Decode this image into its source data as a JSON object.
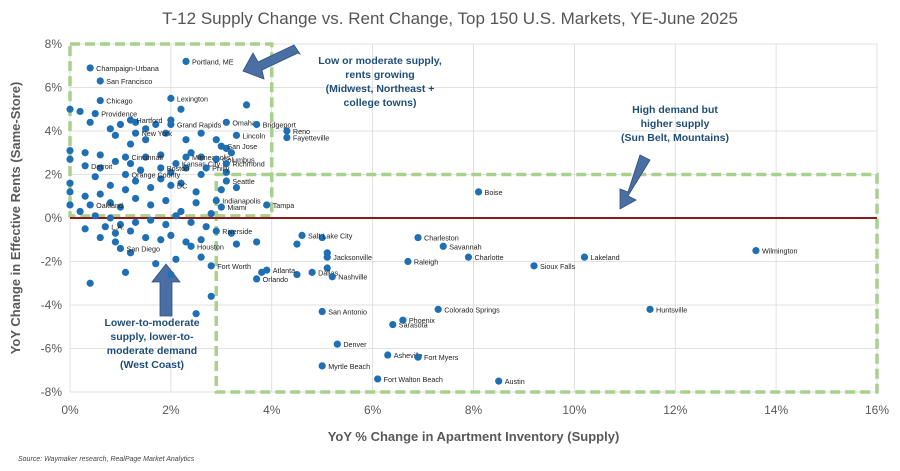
{
  "chart_data": {
    "type": "scatter",
    "title": "T-12 Supply Change vs. Rent Change, Top 150 U.S. Markets, YE-June 2025",
    "xlabel": "YoY % Change in Apartment Inventory (Supply)",
    "ylabel": "YoY Change in Effective Rents (Same-Store)",
    "xlim": [
      0,
      16
    ],
    "ylim": [
      -8,
      8
    ],
    "x_ticks": [
      "0%",
      "2%",
      "4%",
      "6%",
      "8%",
      "10%",
      "12%",
      "14%",
      "16%"
    ],
    "y_ticks": [
      "8%",
      "6%",
      "4%",
      "2%",
      "0%",
      "-2%",
      "-4%",
      "-6%",
      "-8%"
    ],
    "grid": true,
    "point_color": "#1f6fb4",
    "labeled_points": [
      {
        "name": "Portland, ME",
        "x": 2.3,
        "y": 7.2
      },
      {
        "name": "Champaign-Urbana",
        "x": 0.4,
        "y": 6.9
      },
      {
        "name": "San Francisco",
        "x": 0.6,
        "y": 6.3
      },
      {
        "name": "Lexington",
        "x": 2.0,
        "y": 5.5
      },
      {
        "name": "Chicago",
        "x": 0.6,
        "y": 5.4
      },
      {
        "name": "Providence",
        "x": 0.5,
        "y": 4.8
      },
      {
        "name": "Hartford",
        "x": 1.2,
        "y": 4.5
      },
      {
        "name": "Omaha",
        "x": 3.1,
        "y": 4.4
      },
      {
        "name": "Grand Rapids",
        "x": 2.0,
        "y": 4.3
      },
      {
        "name": "Bridgeport",
        "x": 3.7,
        "y": 4.3
      },
      {
        "name": "Reno",
        "x": 4.3,
        "y": 4.0
      },
      {
        "name": "New York",
        "x": 1.3,
        "y": 3.9
      },
      {
        "name": "Lincoln",
        "x": 3.3,
        "y": 3.8
      },
      {
        "name": "Fayetteville",
        "x": 4.3,
        "y": 3.7
      },
      {
        "name": "San Jose",
        "x": 3.0,
        "y": 3.3
      },
      {
        "name": "Cincinnati",
        "x": 1.1,
        "y": 2.8
      },
      {
        "name": "Minneapolis",
        "x": 2.3,
        "y": 2.8
      },
      {
        "name": "Columbus",
        "x": 2.9,
        "y": 2.7
      },
      {
        "name": "Kansas City",
        "x": 2.1,
        "y": 2.5
      },
      {
        "name": "Richmond",
        "x": 3.1,
        "y": 2.5
      },
      {
        "name": "Detroit",
        "x": 0.3,
        "y": 2.4
      },
      {
        "name": "Boston",
        "x": 1.8,
        "y": 2.3
      },
      {
        "name": "Philly",
        "x": 2.7,
        "y": 2.3
      },
      {
        "name": "Orange County",
        "x": 1.1,
        "y": 2.0
      },
      {
        "name": "Seattle",
        "x": 3.1,
        "y": 1.7
      },
      {
        "name": "DC",
        "x": 2.0,
        "y": 1.5
      },
      {
        "name": "Boise",
        "x": 8.1,
        "y": 1.2
      },
      {
        "name": "Indianapolis",
        "x": 2.9,
        "y": 0.8
      },
      {
        "name": "Oakland",
        "x": 0.4,
        "y": 0.6
      },
      {
        "name": "Miami",
        "x": 3.0,
        "y": 0.5
      },
      {
        "name": "Tampa",
        "x": 3.9,
        "y": 0.6
      },
      {
        "name": "L.A.",
        "x": 0.7,
        "y": -0.4
      },
      {
        "name": "Riverside",
        "x": 2.9,
        "y": -0.6
      },
      {
        "name": "Charleston",
        "x": 6.9,
        "y": -0.9
      },
      {
        "name": "Salt Lake City",
        "x": 4.6,
        "y": -0.8
      },
      {
        "name": "Houston",
        "x": 2.4,
        "y": -1.3
      },
      {
        "name": "San Diego",
        "x": 1.0,
        "y": -1.4
      },
      {
        "name": "Savannah",
        "x": 7.4,
        "y": -1.3
      },
      {
        "name": "Wilmington",
        "x": 13.6,
        "y": -1.5
      },
      {
        "name": "Charlotte",
        "x": 7.9,
        "y": -1.8
      },
      {
        "name": "Jacksonville",
        "x": 5.1,
        "y": -1.8
      },
      {
        "name": "Lakeland",
        "x": 10.2,
        "y": -1.8
      },
      {
        "name": "Raleigh",
        "x": 6.7,
        "y": -2.0
      },
      {
        "name": "Sioux Falls",
        "x": 9.2,
        "y": -2.2
      },
      {
        "name": "Fort Worth",
        "x": 2.8,
        "y": -2.2
      },
      {
        "name": "Atlanta",
        "x": 3.9,
        "y": -2.4
      },
      {
        "name": "Dallas",
        "x": 4.8,
        "y": -2.5
      },
      {
        "name": "Nashville",
        "x": 5.2,
        "y": -2.7
      },
      {
        "name": "Orlando",
        "x": 3.7,
        "y": -2.8
      },
      {
        "name": "Colorado Springs",
        "x": 7.3,
        "y": -4.2
      },
      {
        "name": "Huntsville",
        "x": 11.5,
        "y": -4.2
      },
      {
        "name": "San Antonio",
        "x": 5.0,
        "y": -4.3
      },
      {
        "name": "Sarasota",
        "x": 6.4,
        "y": -4.9
      },
      {
        "name": "Phoenix",
        "x": 6.6,
        "y": -4.7
      },
      {
        "name": "Denver",
        "x": 5.3,
        "y": -5.8
      },
      {
        "name": "Asheville",
        "x": 6.3,
        "y": -6.3
      },
      {
        "name": "Fort Myers",
        "x": 6.9,
        "y": -6.4
      },
      {
        "name": "Myrtle Beach",
        "x": 5.0,
        "y": -6.8
      },
      {
        "name": "Austin",
        "x": 8.5,
        "y": -7.5
      },
      {
        "name": "Fort Walton Beach",
        "x": 6.1,
        "y": -7.4
      }
    ],
    "unlabeled_points": [
      [
        0.0,
        5.0
      ],
      [
        0.2,
        4.9
      ],
      [
        0.4,
        4.4
      ],
      [
        0.8,
        4.1
      ],
      [
        1.0,
        4.3
      ],
      [
        1.3,
        4.4
      ],
      [
        1.5,
        4.1
      ],
      [
        1.7,
        4.3
      ],
      [
        2.0,
        4.5
      ],
      [
        2.2,
        5.0
      ],
      [
        0.9,
        3.8
      ],
      [
        1.2,
        3.4
      ],
      [
        1.5,
        3.6
      ],
      [
        1.9,
        3.9
      ],
      [
        2.3,
        3.6
      ],
      [
        2.6,
        3.9
      ],
      [
        2.9,
        3.6
      ],
      [
        3.5,
        5.2
      ],
      [
        3.2,
        3.0
      ],
      [
        0.0,
        3.1
      ],
      [
        0.0,
        2.7
      ],
      [
        0.3,
        3.0
      ],
      [
        0.6,
        2.9
      ],
      [
        0.9,
        2.6
      ],
      [
        1.2,
        2.5
      ],
      [
        1.5,
        2.8
      ],
      [
        1.8,
        2.9
      ],
      [
        2.4,
        3.0
      ],
      [
        2.6,
        2.8
      ],
      [
        3.1,
        3.2
      ],
      [
        0.6,
        2.3
      ],
      [
        1.4,
        2.2
      ],
      [
        2.0,
        2.1
      ],
      [
        2.3,
        2.3
      ],
      [
        2.6,
        2.0
      ],
      [
        3.1,
        2.1
      ],
      [
        0.0,
        1.6
      ],
      [
        0.5,
        1.9
      ],
      [
        0.8,
        1.5
      ],
      [
        1.1,
        1.3
      ],
      [
        1.3,
        1.7
      ],
      [
        1.6,
        1.4
      ],
      [
        1.8,
        1.8
      ],
      [
        2.2,
        1.6
      ],
      [
        2.5,
        1.2
      ],
      [
        3.0,
        1.3
      ],
      [
        3.3,
        1.4
      ],
      [
        0.0,
        1.2
      ],
      [
        0.3,
        1.0
      ],
      [
        0.6,
        1.1
      ],
      [
        0.8,
        0.7
      ],
      [
        1.0,
        0.5
      ],
      [
        1.3,
        0.9
      ],
      [
        1.6,
        0.6
      ],
      [
        1.9,
        0.8
      ],
      [
        2.2,
        0.3
      ],
      [
        2.5,
        0.7
      ],
      [
        2.8,
        0.2
      ],
      [
        0.0,
        0.6
      ],
      [
        0.2,
        0.3
      ],
      [
        0.5,
        0.1
      ],
      [
        0.8,
        0.0
      ],
      [
        1.0,
        -0.3
      ],
      [
        1.3,
        -0.2
      ],
      [
        1.6,
        -0.1
      ],
      [
        1.9,
        -0.3
      ],
      [
        2.1,
        0.1
      ],
      [
        2.4,
        -0.2
      ],
      [
        2.7,
        -0.4
      ],
      [
        3.2,
        -0.7
      ],
      [
        0.3,
        -0.5
      ],
      [
        0.6,
        -0.9
      ],
      [
        0.9,
        -0.7
      ],
      [
        1.2,
        -0.6
      ],
      [
        1.5,
        -0.9
      ],
      [
        1.8,
        -1.0
      ],
      [
        2.0,
        -0.8
      ],
      [
        2.3,
        -1.1
      ],
      [
        2.6,
        -1.0
      ],
      [
        3.3,
        -1.2
      ],
      [
        3.7,
        -1.1
      ],
      [
        0.9,
        -1.1
      ],
      [
        1.2,
        -1.6
      ],
      [
        1.7,
        -2.1
      ],
      [
        2.1,
        -1.9
      ],
      [
        2.6,
        -1.8
      ],
      [
        2.0,
        -2.6
      ],
      [
        1.1,
        -2.5
      ],
      [
        0.4,
        -3.0
      ],
      [
        2.8,
        -3.6
      ],
      [
        2.5,
        -4.4
      ],
      [
        4.5,
        -1.2
      ],
      [
        5.0,
        -0.9
      ],
      [
        5.1,
        -1.6
      ],
      [
        5.1,
        -2.3
      ],
      [
        4.5,
        -2.6
      ],
      [
        3.8,
        -2.5
      ]
    ],
    "reference_line": {
      "y": 0,
      "color": "#8b1a1a"
    },
    "annotations": [
      {
        "lines": [
          "Low or moderate supply,",
          "rents growing",
          "(Midwest, Northeast +",
          "college towns)"
        ]
      },
      {
        "lines": [
          "High demand but",
          "higher supply",
          "(Sun Belt, Mountains)"
        ]
      },
      {
        "lines": [
          "Lower-to-moderate",
          "supply, lower-to-",
          "moderate demand",
          "(West Coast)"
        ]
      }
    ],
    "source": "Source: Waymaker research, RealPage Market Analytics",
    "colors": {
      "points": "#1f6fb4",
      "boxes": "#a9d18e",
      "arrows": "#4a6fa5",
      "annotation_text": "#1f4e79"
    }
  }
}
